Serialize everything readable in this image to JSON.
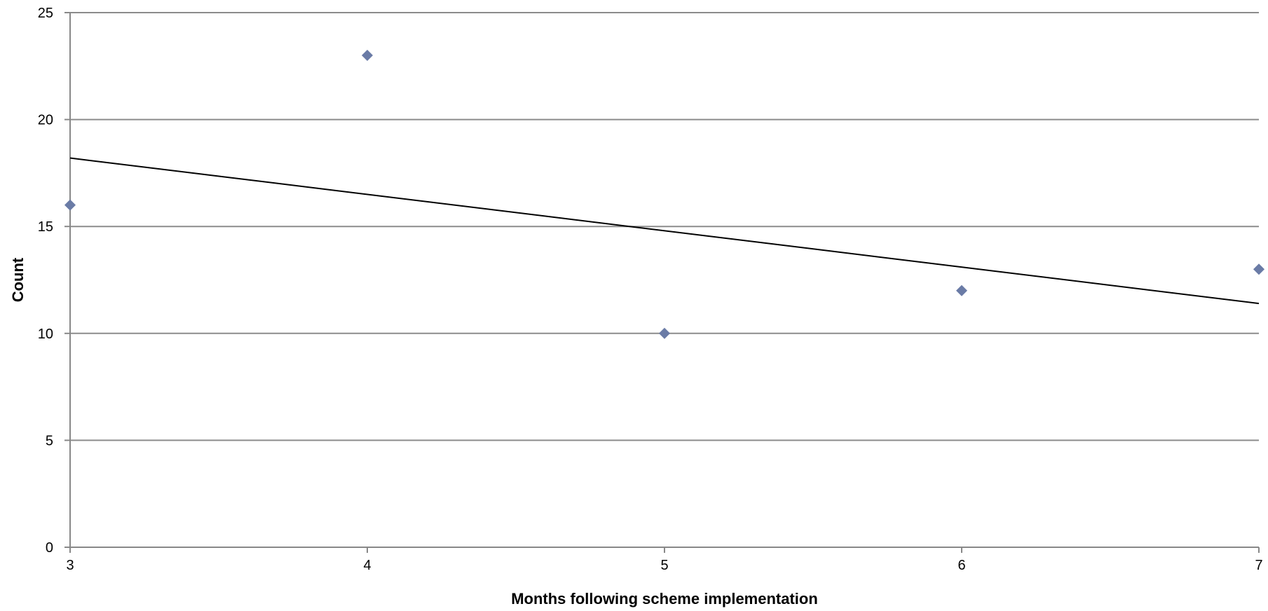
{
  "chart_data": {
    "type": "scatter",
    "title": "",
    "xlabel": "Months following scheme implementation",
    "ylabel": "Count",
    "xlim": [
      3,
      7
    ],
    "ylim": [
      0,
      25
    ],
    "x_ticks": [
      "3",
      "4",
      "5",
      "6",
      "7"
    ],
    "y_ticks": [
      "0",
      "5",
      "10",
      "15",
      "20",
      "25"
    ],
    "grid": "horizontal",
    "legend": "none",
    "series": [
      {
        "marker": "diamond",
        "color": "#6A7BA6",
        "points": [
          {
            "x": 3,
            "y": 16
          },
          {
            "x": 4,
            "y": 23
          },
          {
            "x": 5,
            "y": 10
          },
          {
            "x": 6,
            "y": 12
          },
          {
            "x": 7,
            "y": 13
          }
        ]
      }
    ],
    "trendline": {
      "type": "linear",
      "color": "#000000",
      "start": {
        "x": 3,
        "y": 18.2
      },
      "end": {
        "x": 7,
        "y": 11.4
      }
    }
  }
}
